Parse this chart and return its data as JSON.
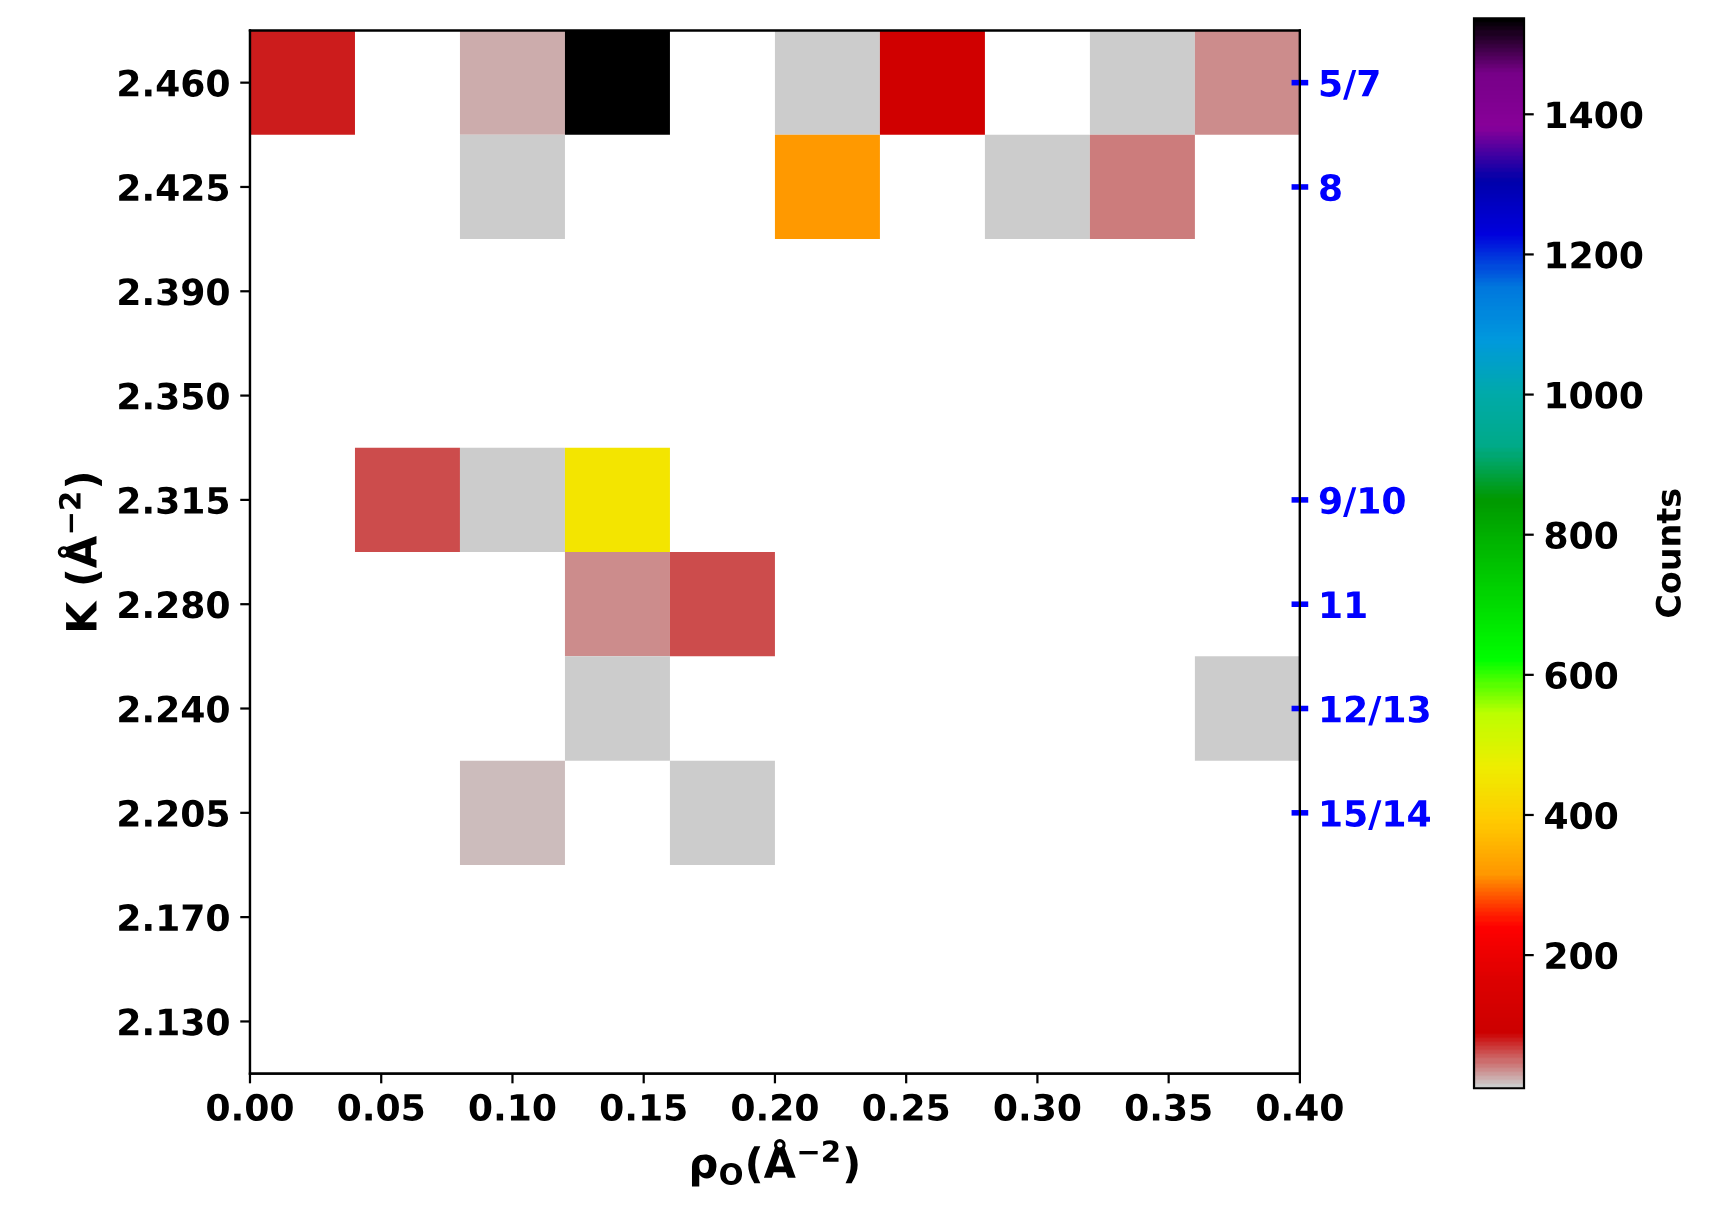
{
  "chart_data": {
    "type": "heatmap",
    "xlabel": "ρ$_{O}$(Å$^{−2}$)",
    "ylabel": "K (Å$^{−2}$)",
    "clabel": "Counts",
    "x": [
      0.02,
      0.06,
      0.1,
      0.14,
      0.18,
      0.22,
      0.26,
      0.3,
      0.34,
      0.38
    ],
    "xlim": [
      0,
      0.4
    ],
    "xticks": [
      {
        "value": 0,
        "label": "0.00"
      },
      0.05,
      {
        "value": 0.1,
        "label": "0.10"
      },
      0.15,
      {
        "value": 0.2,
        "label": "0.20"
      },
      0.25,
      {
        "value": 0.3,
        "label": "0.30"
      },
      0.35,
      {
        "value": 0.4,
        "label": "0.40"
      }
    ],
    "y_categories": [
      "2.460",
      "2.425",
      "2.390",
      "2.350",
      "2.315",
      "2.280",
      "2.240",
      "2.205",
      "2.170",
      "2.130"
    ],
    "y2_categories": [
      "5/7",
      "8",
      null,
      null,
      "9/10",
      "11",
      "12/13",
      "15/14",
      null,
      null
    ],
    "cells": [
      [
        80,
        null,
        27,
        1537,
        null,
        10,
        110,
        null,
        10,
        35
      ],
      [
        null,
        null,
        15,
        null,
        null,
        320,
        null,
        15,
        40,
        null
      ],
      [
        null,
        null,
        null,
        null,
        null,
        null,
        null,
        null,
        null,
        null
      ],
      [
        null,
        null,
        null,
        null,
        null,
        null,
        null,
        null,
        null,
        null
      ],
      [
        null,
        63,
        10,
        450,
        null,
        null,
        null,
        null,
        null,
        null
      ],
      [
        null,
        null,
        null,
        35,
        63,
        null,
        null,
        null,
        null,
        null
      ],
      [
        null,
        null,
        null,
        10,
        null,
        null,
        null,
        null,
        null,
        15
      ],
      [
        null,
        null,
        21,
        null,
        10,
        null,
        null,
        null,
        null,
        null
      ],
      [
        null,
        null,
        null,
        null,
        null,
        null,
        null,
        null,
        null,
        null
      ],
      [
        null,
        null,
        null,
        null,
        null,
        null,
        null,
        null,
        null,
        null
      ]
    ],
    "clim": [
      10,
      1537
    ],
    "cticks": [
      200,
      400,
      600,
      800,
      1000,
      1200,
      1400
    ],
    "grid": false
  }
}
